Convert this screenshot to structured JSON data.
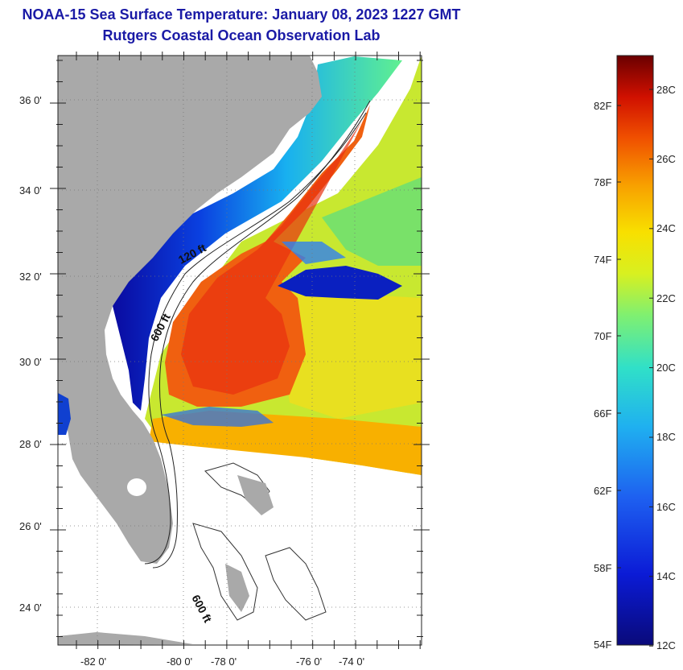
{
  "title": "NOAA-15 Sea Surface Temperature:  January 08, 2023 1227 GMT",
  "subtitle": "Rutgers Coastal Ocean Observation Lab",
  "map": {
    "lat_labels": [
      "36 0'",
      "34 0'",
      "32 0'",
      "30 0'",
      "28 0'",
      "26 0'",
      "24 0'"
    ],
    "lon_labels": [
      "-82 0'",
      "-80 0'",
      "-78 0'",
      "-76 0'",
      "-74 0'"
    ],
    "contour_labels": [
      "120 ft",
      "600 ft",
      "600 ft"
    ],
    "colors": {
      "land": "#a9a9a9",
      "water_nodata": "#ffffff"
    }
  },
  "colorbar": {
    "f_labels": [
      "82F",
      "78F",
      "74F",
      "70F",
      "66F",
      "62F",
      "58F",
      "54F"
    ],
    "c_labels": [
      "28C",
      "26C",
      "24C",
      "22C",
      "20C",
      "18C",
      "16C",
      "14C",
      "12C"
    ]
  }
}
